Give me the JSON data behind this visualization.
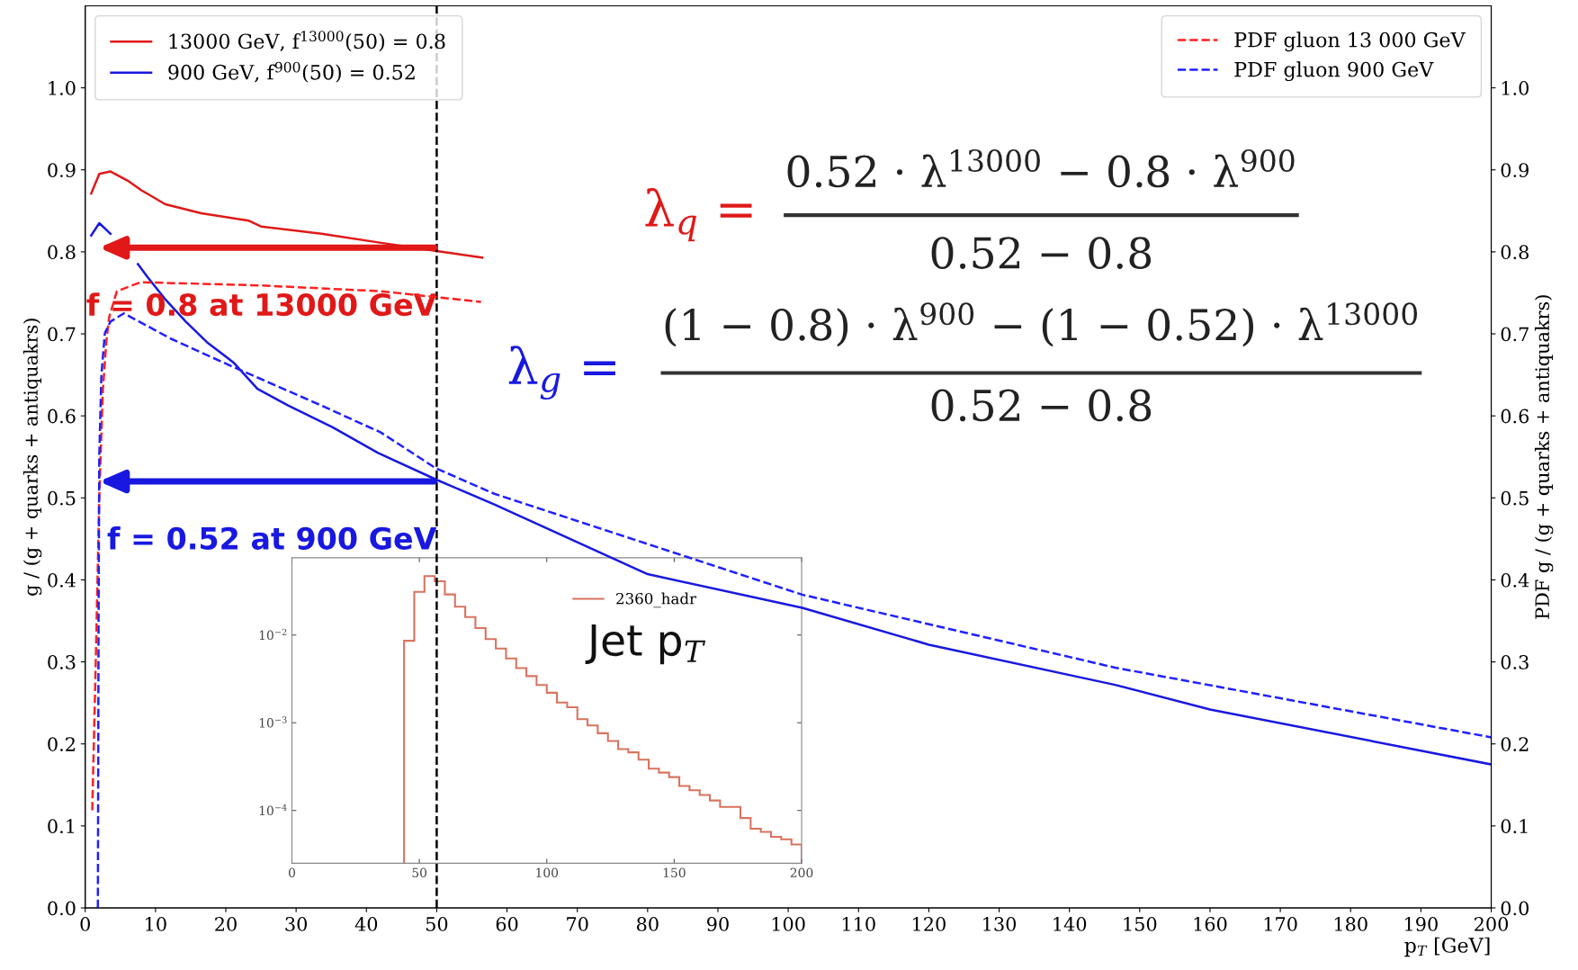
{
  "chart_data": [
    {
      "type": "line",
      "xlabel": "p$_{T}$ [GeV]",
      "ylabel": "g / (g + quarks + antiquakrs)",
      "y2label": "PDF g / (g + quarks + antiquakrs)",
      "xlim": [
        0,
        200
      ],
      "xticks": [
        0,
        10,
        20,
        30,
        40,
        50,
        60,
        70,
        80,
        90,
        100,
        110,
        120,
        130,
        140,
        150,
        160,
        170,
        180,
        190,
        200
      ],
      "ylim": [
        0,
        1.1
      ],
      "yticks": [
        {
          "value": 0,
          "label": "0.0"
        },
        0.1,
        0.2,
        0.3,
        0.4,
        0.5,
        0.6,
        0.7,
        0.8,
        0.9,
        {
          "value": 1,
          "label": "1.0"
        }
      ],
      "y2lim": [
        0,
        1.1
      ],
      "y2ticks": [
        {
          "value": 0,
          "label": "0.0"
        },
        0.1,
        0.2,
        0.3,
        0.4,
        0.5,
        0.6,
        0.7,
        0.8,
        0.9,
        {
          "value": 1,
          "label": "1.0"
        }
      ],
      "legend": "top left",
      "grid": false,
      "series": [
        {
          "type": "line",
          "name": "13000 GeV, f$^{13000}$(50) = 0.8",
          "color": "#e01818",
          "x": [
            0.85,
            2.0,
            3.6,
            6,
            8,
            11.4,
            16.5,
            23.3,
            25,
            33.6,
            42.1,
            50,
            56.5
          ],
          "values": [
            0.871,
            0.895,
            0.898,
            0.887,
            0.875,
            0.858,
            0.847,
            0.838,
            0.831,
            0.822,
            0.811,
            0.801,
            0.793
          ]
        },
        {
          "type": "line",
          "name": "900 GeV, f$^{900}$(50) = 0.52",
          "color": "#1818e0",
          "x": [
            0.85,
            2.0,
            3.6,
            5.8,
            7.5,
            8.8,
            11.3,
            14.3,
            17.3,
            21.1,
            24.5,
            28.8,
            35.2,
            41.6,
            50,
            58.2,
            80,
            102,
            120,
            146.5,
            160,
            200
          ],
          "values": [
            0.82,
            0.835,
            0.822,
            null,
            0.785,
            0.77,
            0.743,
            0.715,
            0.69,
            0.665,
            0.633,
            0.613,
            0.586,
            0.555,
            0.522,
            0.492,
            0.407,
            0.366,
            0.321,
            0.272,
            0.242,
            0.175
          ]
        },
        {
          "type": "line",
          "axis": "y2",
          "line_style": "dashed",
          "name": "PDF gluon 13 000 GeV",
          "color": "#ff2020",
          "x": [
            1.0,
            1.5,
            2.0,
            2.5,
            3.0,
            3.4,
            4.5,
            7.9,
            25,
            42,
            56.3
          ],
          "values": [
            0.119,
            0.3,
            0.5,
            0.63,
            0.69,
            0.72,
            0.752,
            0.763,
            0.759,
            0.752,
            0.739
          ]
        },
        {
          "type": "line",
          "axis": "y2",
          "line_style": "dashed",
          "name": "PDF gluon 900 GeV",
          "color": "#2020ff",
          "x": [
            1.8,
            1.9,
            2.0,
            2.3,
            2.8,
            3.6,
            5.5,
            12.2,
            20.7,
            33.5,
            42,
            49.9,
            58.2,
            102,
            146.5,
            200
          ],
          "values": [
            0.0,
            0.35,
            0.55,
            0.65,
            0.701,
            0.715,
            0.725,
            0.694,
            0.661,
            0.613,
            0.58,
            0.536,
            0.505,
            0.382,
            0.293,
            0.208
          ]
        }
      ],
      "ref_lines": [
        {
          "axis": "x",
          "value": 50,
          "color": "#000000",
          "line_style": "dashed"
        }
      ],
      "annotations": [
        {
          "text": "f = 0.8 at 13000 GeV",
          "x": 50,
          "y": 0.805
        },
        {
          "text": "f = 0.52 at 900 GeV",
          "x": 50,
          "y": 0.52
        },
        "λ$_{q}$ =",
        "0.52 · λ$^{13000}$ − 0.8 · λ$^{900}$",
        "0.52 − 0.8",
        "λ$_{g}$ =",
        "(1 − 0.8) · λ$^{900}$ − (1 − 0.52) · λ$^{13000}$",
        "0.52 − 0.8"
      ]
    },
    {
      "type": "histogram",
      "log": "y",
      "legend": "top right",
      "bins": [
        44,
        48,
        52,
        56,
        60,
        64,
        68,
        72,
        76,
        80,
        84,
        88,
        92,
        96,
        100,
        104,
        108,
        112,
        116,
        120,
        124,
        128,
        132,
        136,
        140,
        144,
        148,
        152,
        156,
        160,
        164,
        168,
        172,
        176,
        180,
        184,
        188,
        192,
        196,
        200
      ],
      "series": [
        {
          "name": "2360_hadr",
          "color": "#d9735e",
          "values": [
            0.0086,
            0.031,
            0.047,
            0.041,
            0.029,
            0.021,
            0.016,
            0.012,
            0.009,
            0.007,
            0.0054,
            0.0042,
            0.0034,
            0.0027,
            0.0022,
            0.0017,
            0.0015,
            0.0011,
            0.00093,
            0.00076,
            0.00062,
            0.0005,
            0.00046,
            0.00038,
            0.0003,
            0.00027,
            0.00024,
            0.00019,
            0.00017,
            0.00015,
            0.00013,
            0.00011,
            0.00011,
            8.2e-05,
            6.2e-05,
            5.7e-05,
            5e-05,
            4.7e-05,
            4.1e-05
          ]
        }
      ],
      "xlim": [
        0,
        200
      ],
      "xticks": [
        0,
        50,
        100,
        150,
        200
      ],
      "ylim": [
        2.5e-05,
        0.076
      ],
      "yticks": [
        {
          "value": 0.0001,
          "label": "10$^{−4}$"
        },
        {
          "value": 0.001,
          "label": "10$^{−3}$"
        },
        {
          "value": 0.01,
          "label": "10$^{−2}$"
        }
      ],
      "annotations": [
        "Jet p$_{T}$"
      ]
    }
  ]
}
